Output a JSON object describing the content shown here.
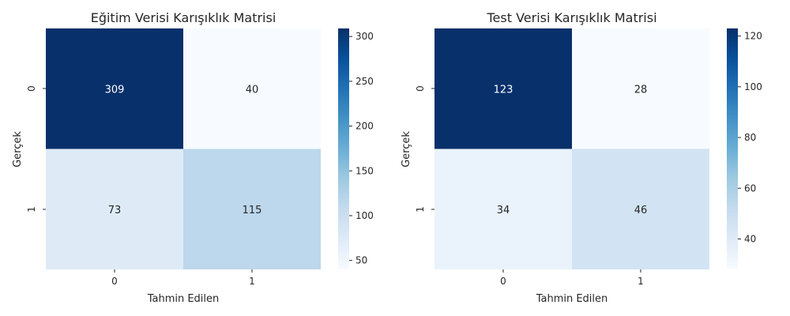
{
  "chart_data": [
    {
      "type": "heatmap",
      "title": "Eğitim Verisi Karışıklık Matrisi",
      "xlabel": "Tahmin Edilen",
      "ylabel": "Gerçek",
      "x_ticks": [
        "0",
        "1"
      ],
      "y_ticks": [
        "0",
        "1"
      ],
      "values": [
        [
          309,
          40
        ],
        [
          73,
          115
        ]
      ],
      "colormap": "Blues",
      "color_range": [
        40,
        309
      ],
      "colorbar_ticks": [
        50,
        100,
        150,
        200,
        250,
        300
      ]
    },
    {
      "type": "heatmap",
      "title": "Test Verisi Karışıklık Matrisi",
      "xlabel": "Tahmin Edilen",
      "ylabel": "Gerçek",
      "x_ticks": [
        "0",
        "1"
      ],
      "y_ticks": [
        "0",
        "1"
      ],
      "values": [
        [
          123,
          28
        ],
        [
          34,
          46
        ]
      ],
      "colormap": "Blues",
      "color_range": [
        28,
        123
      ],
      "colorbar_ticks": [
        40,
        60,
        80,
        100,
        120
      ]
    }
  ]
}
